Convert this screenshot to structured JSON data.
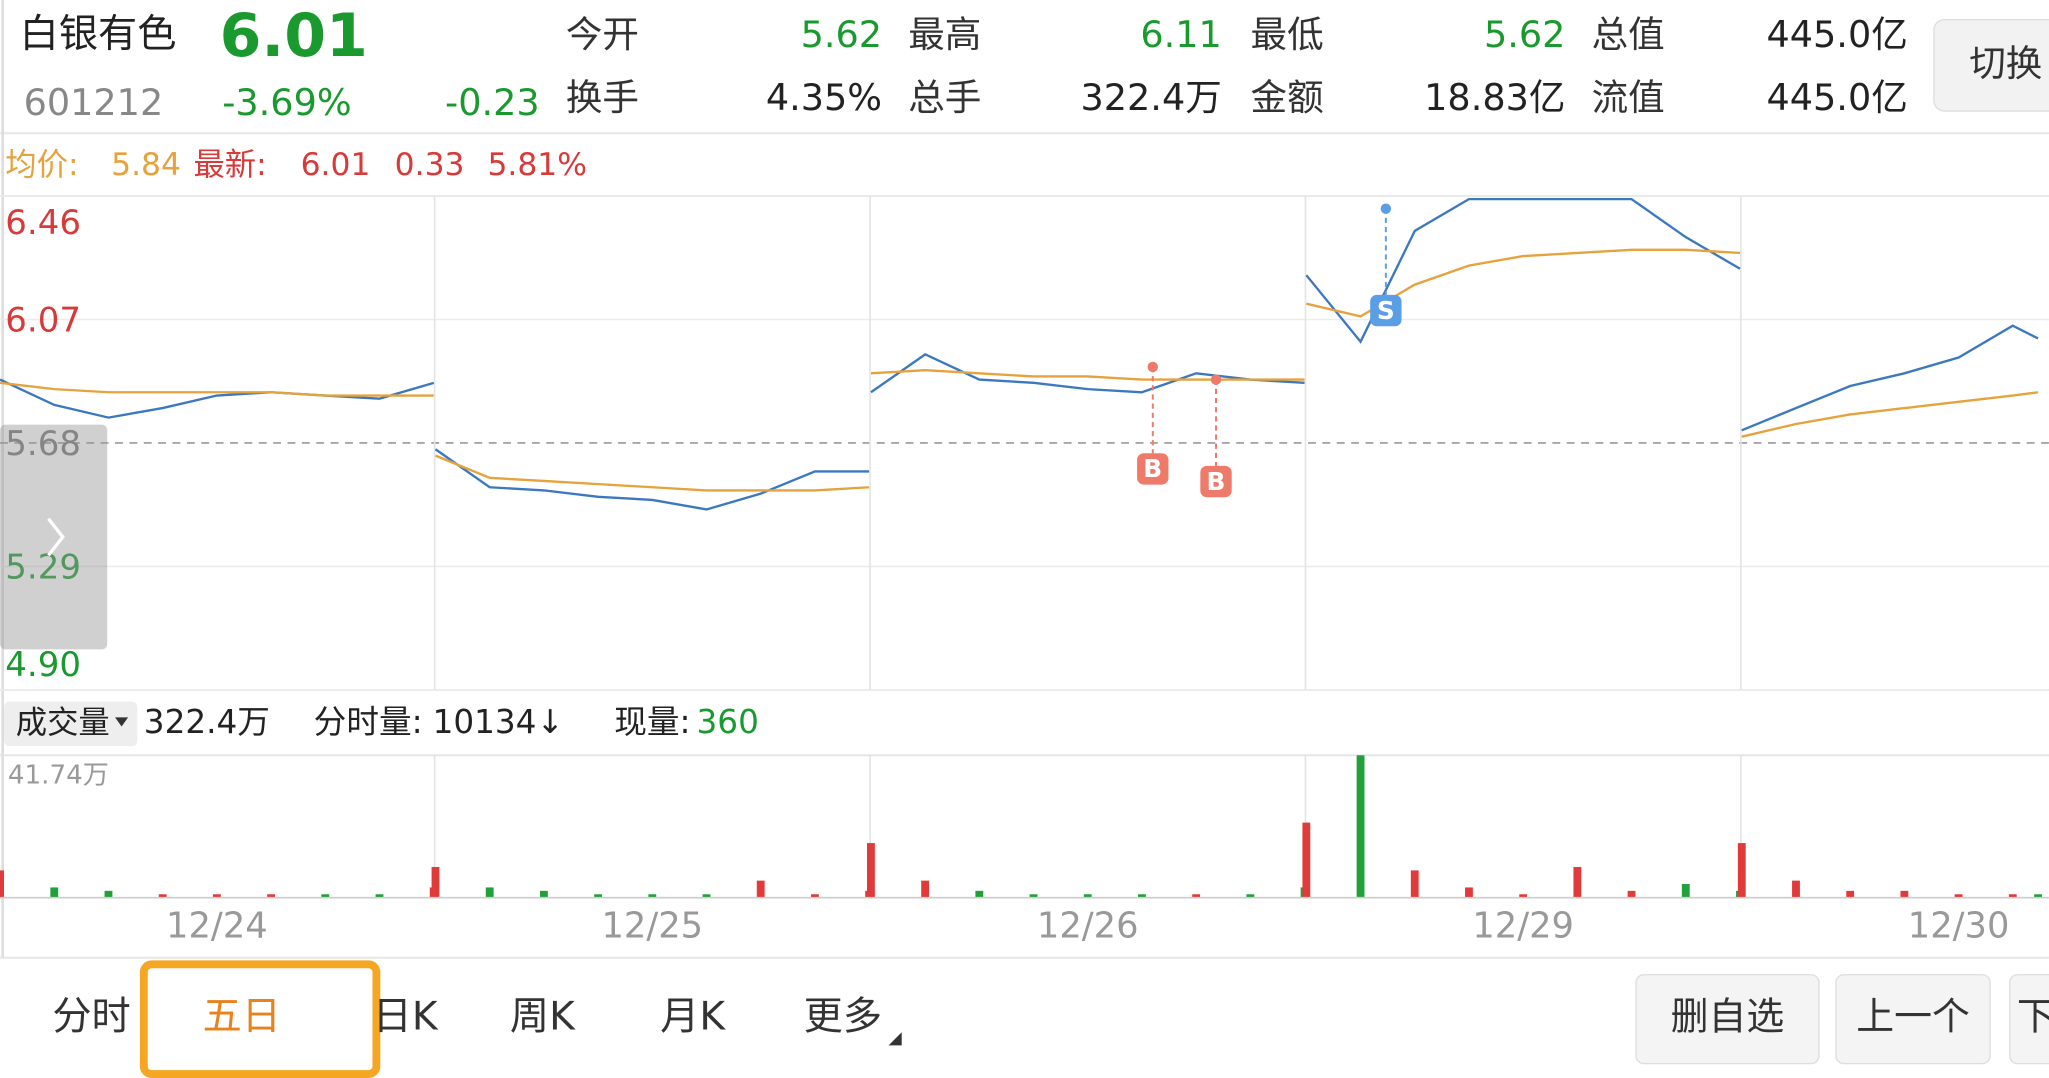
{
  "header": {
    "name": "白银有色",
    "price": "6.01",
    "code": "601212",
    "change_pct": "-3.69%",
    "change": "-0.23",
    "stats": [
      {
        "label": "今开",
        "value": "5.62",
        "color": "#1a9a2e"
      },
      {
        "label": "最高",
        "value": "6.11",
        "color": "#1a9a2e"
      },
      {
        "label": "最低",
        "value": "5.62",
        "color": "#1a9a2e"
      },
      {
        "label": "总值",
        "value": "445.0亿",
        "color": "#222222"
      },
      {
        "label": "换手",
        "value": "4.35%",
        "color": "#222222"
      },
      {
        "label": "总手",
        "value": "322.4万",
        "color": "#222222"
      },
      {
        "label": "金额",
        "value": "18.83亿",
        "color": "#222222"
      },
      {
        "label": "流值",
        "value": "445.0亿",
        "color": "#222222"
      }
    ],
    "switch_button": "切换"
  },
  "info": {
    "avg_label": "均价:",
    "avg": "5.84",
    "latest_label": "最新:",
    "latest": "6.01",
    "diff": "0.33",
    "diff_pct": "5.81%"
  },
  "chart_data": {
    "type": "line",
    "x": [
      0,
      30,
      60,
      90,
      120,
      150,
      180,
      210,
      240,
      240.5,
      241,
      271,
      301,
      331,
      361,
      391,
      421,
      451,
      481,
      481.5,
      482,
      512,
      542,
      572,
      602,
      632,
      662,
      692,
      722,
      722.5,
      723,
      753,
      783,
      813,
      843,
      873,
      903,
      933,
      963,
      963.5,
      964,
      994,
      1024,
      1054,
      1084,
      1114,
      1128
    ],
    "series": [
      {
        "color": "#3b78c0",
        "values": [
          5.88,
          5.8,
          5.76,
          5.79,
          5.83,
          5.84,
          5.83,
          5.82,
          5.87,
          null,
          5.66,
          5.54,
          5.53,
          5.51,
          5.5,
          5.47,
          5.52,
          5.59,
          5.59,
          null,
          5.84,
          5.96,
          5.88,
          5.87,
          5.85,
          5.84,
          5.9,
          5.88,
          5.87,
          null,
          6.21,
          6.0,
          6.35,
          6.45,
          6.45,
          6.45,
          6.45,
          6.33,
          6.23,
          null,
          5.72,
          5.79,
          5.86,
          5.9,
          5.95,
          6.05,
          6.01
        ]
      },
      {
        "color": "#e6a23c",
        "values": [
          5.87,
          5.85,
          5.84,
          5.84,
          5.84,
          5.84,
          5.83,
          5.83,
          5.83,
          null,
          5.64,
          5.57,
          5.56,
          5.55,
          5.54,
          5.53,
          5.53,
          5.53,
          5.54,
          null,
          5.9,
          5.91,
          5.9,
          5.89,
          5.89,
          5.88,
          5.88,
          5.88,
          5.88,
          null,
          6.12,
          6.08,
          6.18,
          6.24,
          6.27,
          6.28,
          6.29,
          6.29,
          6.28,
          null,
          5.7,
          5.74,
          5.77,
          5.79,
          5.81,
          5.83,
          5.84
        ]
      }
    ],
    "xlim": [
      0,
      1134
    ],
    "xticks": [
      {
        "value": 120,
        "label": "12/24"
      },
      {
        "value": 361,
        "label": "12/25"
      },
      {
        "value": 602,
        "label": "12/26"
      },
      {
        "value": 843,
        "label": "12/29"
      },
      {
        "value": 1084,
        "label": "12/30"
      }
    ],
    "ylim": [
      4.9,
      6.46
    ],
    "yticks": [
      6.46,
      6.07,
      5.68,
      5.29,
      {
        "value": 4.9,
        "label": "4.90"
      }
    ],
    "markers": [
      {
        "label": "B",
        "x": 638,
        "y": 5.92,
        "color": "#ee7a6a"
      },
      {
        "label": "B",
        "x": 673,
        "y": 5.88,
        "color": "#ee7a6a"
      },
      {
        "label": "S",
        "x": 767,
        "y": 6.42,
        "color": "#5a9ee6"
      }
    ],
    "volume": {
      "label": "成交量",
      "total": "322.4万",
      "tick_label": "分时量:",
      "tick_value": "10134↓",
      "now_label": "现量:",
      "now_value": "360",
      "values": [
        8,
        3,
        2,
        1,
        1,
        1,
        1,
        1,
        3,
        null,
        9,
        3,
        2,
        1,
        1,
        1,
        5,
        1,
        2,
        null,
        16,
        5,
        2,
        1,
        1,
        1,
        1,
        1,
        3,
        null,
        22,
        41.74,
        8,
        3,
        1,
        9,
        2,
        4,
        2,
        null,
        16,
        5,
        2,
        2,
        1,
        1,
        1
      ],
      "ylim": [
        0,
        41.74
      ],
      "yticks": [
        {
          "value": 41.74,
          "label": "41.74万"
        }
      ],
      "up_color": "#e03a3a",
      "down_color": "#22a03a"
    }
  },
  "tabs": [
    "分时",
    "五日",
    "日K",
    "周K",
    "月K",
    "更多"
  ],
  "selected_tab": 1,
  "buttons": [
    "删自选",
    "上一个",
    "下"
  ]
}
